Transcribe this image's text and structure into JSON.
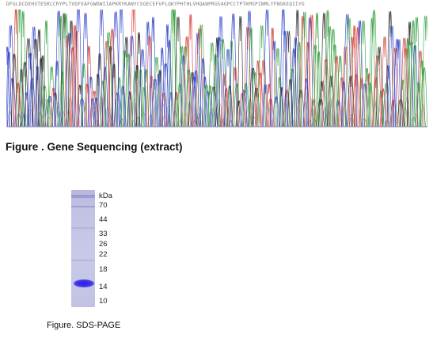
{
  "sequencing": {
    "sequence_header": "DFGLDCDEHSTESRCCRYPLTVDFEAFGWDWIIAPKRYKANYCSGECEFVFLQKYPHTHLVHQANPRGSAGPCCTPTKMSPINMLYFNGKEQIIYG",
    "caption": "Figure . Gene Sequencing (extract)",
    "trace_colors": {
      "A": "#2e9e3a",
      "C": "#2a3ec9",
      "G": "#222222",
      "T": "#d43a30"
    }
  },
  "gel": {
    "unit_label": "kDa",
    "markers": [
      "70",
      "44",
      "33",
      "26",
      "22",
      "18",
      "14",
      "10"
    ],
    "band_color": "#2a1fe0",
    "caption": "Figure. SDS-PAGE"
  }
}
